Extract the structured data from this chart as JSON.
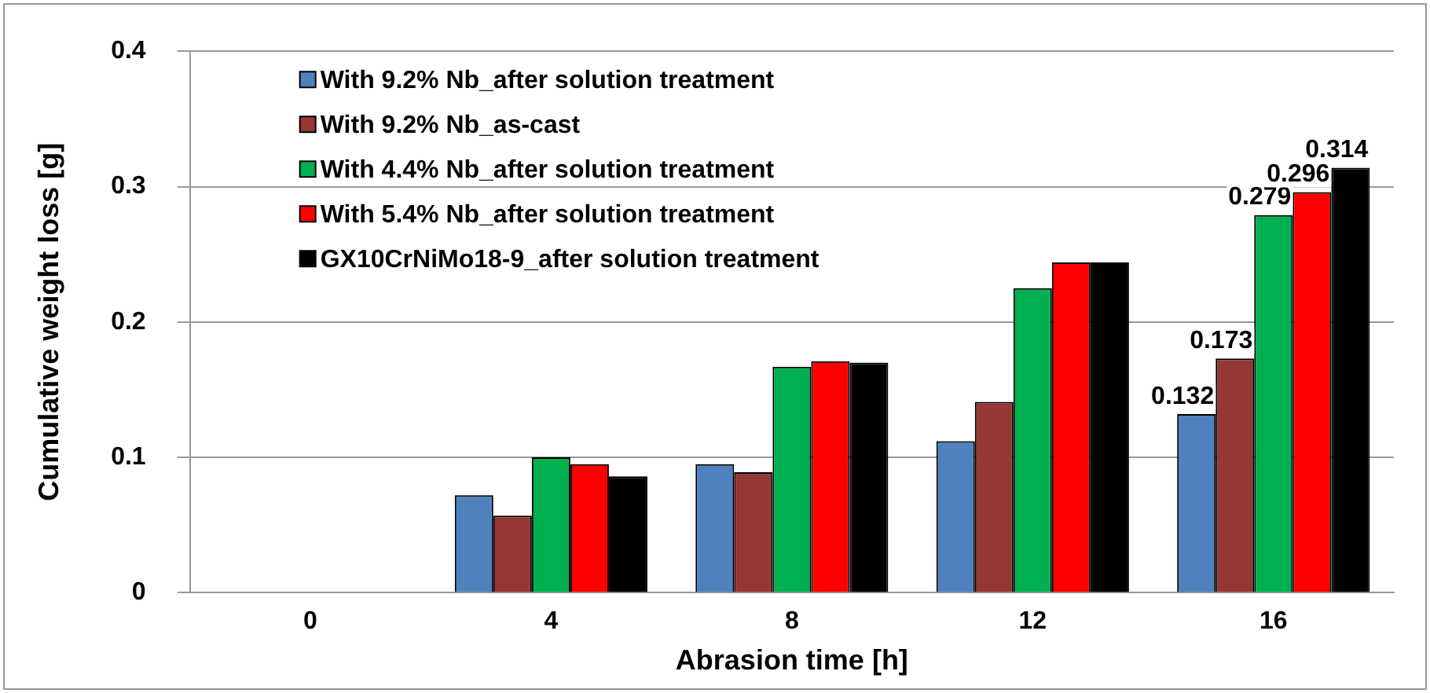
{
  "chart_data": {
    "type": "bar",
    "xlabel": "Abrasion time [h]",
    "ylabel": "Cumulative weight loss [g]",
    "categories": [
      "0",
      "4",
      "8",
      "12",
      "16"
    ],
    "series": [
      {
        "name": "With 9.2% Nb_after solution treatment",
        "color": "#4f81bd",
        "values": [
          0,
          0.072,
          0.095,
          0.112,
          0.132
        ],
        "value_labels": [
          null,
          null,
          null,
          null,
          "0.132"
        ]
      },
      {
        "name": "With 9.2% Nb_as-cast",
        "color": "#953735",
        "values": [
          0,
          0.057,
          0.089,
          0.141,
          0.173
        ],
        "value_labels": [
          null,
          null,
          null,
          null,
          "0.173"
        ]
      },
      {
        "name": "With 4.4% Nb_after solution treatment",
        "color": "#00b050",
        "values": [
          0,
          0.1,
          0.167,
          0.225,
          0.279
        ],
        "value_labels": [
          null,
          null,
          null,
          null,
          "0.279"
        ]
      },
      {
        "name": "With 5.4% Nb_after solution treatment",
        "color": "#ff0000",
        "values": [
          0,
          0.095,
          0.171,
          0.244,
          0.296
        ],
        "value_labels": [
          null,
          null,
          null,
          null,
          "0.296"
        ]
      },
      {
        "name": "GX10CrNiMo18-9_after solution treatment",
        "color": "#000000",
        "values": [
          0,
          0.086,
          0.17,
          0.244,
          0.314
        ],
        "value_labels": [
          null,
          null,
          null,
          null,
          "0.314"
        ]
      }
    ],
    "ylim": [
      0,
      0.4
    ],
    "yticks": [
      0,
      0.1,
      0.2,
      0.3,
      0.4
    ],
    "grid": "y",
    "legend": "top left"
  }
}
